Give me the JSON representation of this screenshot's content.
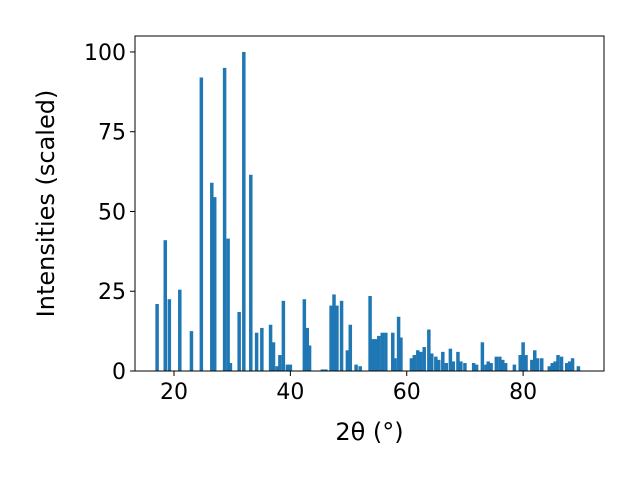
{
  "chart_data": {
    "type": "bar",
    "xlabel": "2θ (°)",
    "ylabel": "Intensities (scaled)",
    "color": "#1f77b4",
    "xlim": [
      13.3,
      93.9
    ],
    "ylim": [
      0,
      105
    ],
    "xticks": [
      20,
      40,
      60,
      80
    ],
    "yticks": [
      0,
      25,
      50,
      75,
      100
    ],
    "x": [
      17.1,
      18.5,
      19.2,
      21.0,
      23.0,
      24.7,
      26.5,
      27.0,
      28.7,
      29.3,
      29.7,
      31.2,
      32.0,
      33.2,
      34.2,
      35.1,
      36.6,
      37.1,
      37.7,
      38.2,
      38.8,
      39.5,
      40.0,
      42.4,
      42.9,
      43.3,
      45.5,
      46.1,
      47.0,
      47.5,
      48.0,
      48.8,
      49.8,
      50.3,
      51.3,
      52.0,
      53.7,
      54.2,
      54.7,
      55.2,
      55.8,
      56.4,
      57.6,
      58.0,
      58.6,
      59.0,
      60.8,
      61.3,
      61.9,
      62.4,
      63.0,
      63.8,
      64.3,
      65.0,
      65.5,
      66.2,
      66.8,
      67.5,
      68.0,
      68.8,
      69.3,
      70.0,
      71.5,
      72.0,
      73.0,
      73.6,
      74.0,
      74.5,
      75.4,
      76.0,
      76.5,
      77.0,
      78.5,
      79.5,
      80.0,
      80.5,
      81.5,
      82.0,
      82.5,
      83.2,
      84.5,
      85.0,
      85.5,
      86.0,
      86.6,
      87.5,
      88.0,
      88.5,
      89.5
    ],
    "values": [
      21,
      41,
      22.5,
      25.5,
      12.5,
      92,
      59,
      54.5,
      95,
      41.5,
      2.5,
      18.5,
      100,
      61.5,
      12,
      13.5,
      14.5,
      9,
      1.5,
      5,
      22,
      2,
      2,
      22.5,
      13.5,
      8,
      0.5,
      0.5,
      20.5,
      24,
      20.5,
      22,
      6.5,
      14.5,
      2,
      1.5,
      23.5,
      10,
      10,
      11,
      12,
      12,
      12,
      4,
      17,
      10.5,
      4,
      5,
      6.5,
      6,
      7.5,
      13,
      5.5,
      4.5,
      3.5,
      6,
      2.5,
      7,
      3,
      6,
      3,
      2.5,
      2.5,
      2,
      9,
      2,
      3,
      2.5,
      4.5,
      4.5,
      3.5,
      2.5,
      2,
      5,
      9,
      5,
      3.5,
      6.5,
      4,
      4,
      1.5,
      2.5,
      3,
      5,
      4.5,
      2.5,
      3,
      4,
      1.5
    ]
  }
}
